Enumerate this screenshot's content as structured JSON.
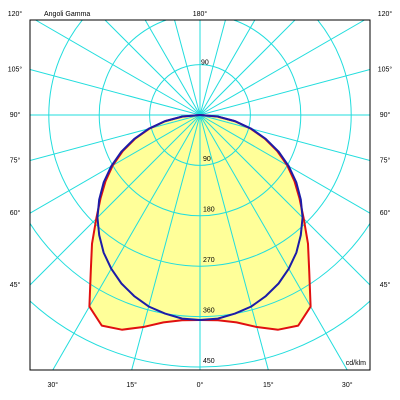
{
  "chart_data": {
    "type": "polar",
    "title": "Angoli Gamma",
    "unit": "cd/klm",
    "x": [
      0,
      5,
      10,
      15,
      20,
      25,
      30,
      35,
      40,
      45,
      50,
      55,
      60,
      65,
      70,
      75,
      80,
      85,
      90
    ],
    "series": [
      {
        "color": "#e01010",
        "fill": "#ffff99",
        "values": [
          366,
          368,
          376,
          392,
          408,
          415,
          395,
          340,
          300,
          262,
          232,
          206,
          180,
          152,
          123,
          93,
          63,
          31,
          0
        ]
      },
      {
        "color": "#1c1ca8",
        "values": [
          366,
          365,
          360,
          354,
          344,
          332,
          317,
          300,
          280,
          259,
          235,
          210,
          183,
          155,
          125,
          95,
          64,
          32,
          0
        ]
      }
    ],
    "rlim": [
      0,
      450
    ],
    "rticks": [
      90,
      180,
      270,
      360,
      450
    ],
    "angle_ticks": [
      {
        "value": 0,
        "label": "0°"
      },
      {
        "value": 15,
        "label": "15°"
      },
      {
        "value": 30,
        "label": "30°"
      },
      {
        "value": 45,
        "label": "45°"
      },
      {
        "value": 60,
        "label": "60°"
      },
      {
        "value": 75,
        "label": "75°"
      },
      {
        "value": 90,
        "label": "90°"
      },
      {
        "value": 105,
        "label": "105°"
      },
      {
        "value": 120,
        "label": "120°"
      },
      {
        "value": 135,
        "label": null
      },
      {
        "value": 150,
        "label": null
      },
      {
        "value": 165,
        "label": null
      },
      {
        "value": 180,
        "label": "180°"
      }
    ],
    "grid": true
  }
}
